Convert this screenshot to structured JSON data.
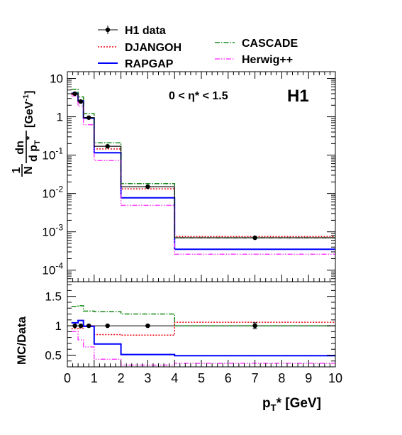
{
  "chart_data": {
    "type": "histogram",
    "experiment_label": "H1",
    "region_label": "0 < η* < 1.5",
    "xlabel": {
      "main": "p",
      "sub": "T",
      "rest": "* [GeV]"
    },
    "xlim": [
      0,
      10
    ],
    "x_ticks": [
      "0",
      "1",
      "2",
      "3",
      "4",
      "5",
      "6",
      "7",
      "8",
      "9",
      "10"
    ],
    "bin_edges": [
      0.15,
      0.4,
      0.6,
      1.0,
      2.0,
      4.0,
      10.0
    ],
    "top_panel": {
      "scale": "log",
      "ylim": [
        5e-05,
        15
      ],
      "ylabel": {
        "frac_num": "1",
        "frac_den": "N",
        "deriv_num": "dn",
        "deriv_den": "d p",
        "sub": "T",
        "star": "*",
        "unit": "[GeV",
        "unit_exp": "-1",
        "unit_close": "]"
      },
      "y_tick_labels": [
        {
          "base": "10",
          "exp": "-4",
          "value": 0.0001
        },
        {
          "base": "10",
          "exp": "-3",
          "value": 0.001
        },
        {
          "base": "10",
          "exp": "-2",
          "value": 0.01
        },
        {
          "base": "10",
          "exp": "-1",
          "value": 0.1
        },
        {
          "base": "1",
          "exp": "",
          "value": 1
        },
        {
          "base": "10",
          "exp": "",
          "value": 10
        }
      ]
    },
    "ratio_panel": {
      "ylabel": "MC/Data",
      "ylim": [
        0.3,
        1.75
      ],
      "y_ticks": [
        "0.5",
        "1",
        "1.5"
      ],
      "reference_line": 1
    },
    "legend": [
      {
        "key": "data",
        "label": "H1 data"
      },
      {
        "key": "djangoh",
        "label": "DJANGOH"
      },
      {
        "key": "rapgap",
        "label": "RAPGAP"
      },
      {
        "key": "cascade",
        "label": "CASCADE"
      },
      {
        "key": "herwig",
        "label": "Herwig++"
      }
    ],
    "data": {
      "name": "H1 data",
      "x": [
        0.28,
        0.5,
        0.8,
        1.5,
        3.0,
        7.0
      ],
      "y": [
        4.0,
        2.5,
        0.95,
        0.17,
        0.015,
        0.0007
      ],
      "ratio_err": [
        0.01,
        0.01,
        0.01,
        0.01,
        0.015,
        0.05
      ]
    },
    "series": [
      {
        "key": "djangoh",
        "name": "DJANGOH",
        "color": "#e8000b",
        "dash": "2,2",
        "width": 1.5,
        "values": [
          3.8,
          2.4,
          0.95,
          0.145,
          0.0132,
          0.00075
        ],
        "ratio": [
          0.95,
          0.96,
          1.0,
          0.85,
          0.84,
          1.06
        ]
      },
      {
        "key": "rapgap",
        "name": "RAPGAP",
        "color": "#0000ff",
        "dash": "",
        "width": 2,
        "values": [
          4.1,
          2.6,
          0.92,
          0.115,
          0.0077,
          0.00035
        ],
        "ratio": [
          1.05,
          1.09,
          0.99,
          0.69,
          0.51,
          0.49
        ]
      },
      {
        "key": "cascade",
        "name": "CASCADE",
        "color": "#1a8a1a",
        "dash": "7,2,1.5,2",
        "width": 1.5,
        "values": [
          5.2,
          3.3,
          1.2,
          0.21,
          0.018,
          0.0007
        ],
        "ratio": [
          1.33,
          1.34,
          1.25,
          1.24,
          1.2,
          1.0
        ]
      },
      {
        "key": "herwig",
        "name": "Herwig++",
        "color": "#ff44ff",
        "dash": "7,2,1.5,2,1.5,2",
        "width": 1.5,
        "values": [
          3.5,
          1.9,
          0.62,
          0.072,
          0.0049,
          0.00026
        ],
        "ratio": [
          0.9,
          0.76,
          0.64,
          0.43,
          0.33,
          0.36
        ]
      }
    ]
  }
}
